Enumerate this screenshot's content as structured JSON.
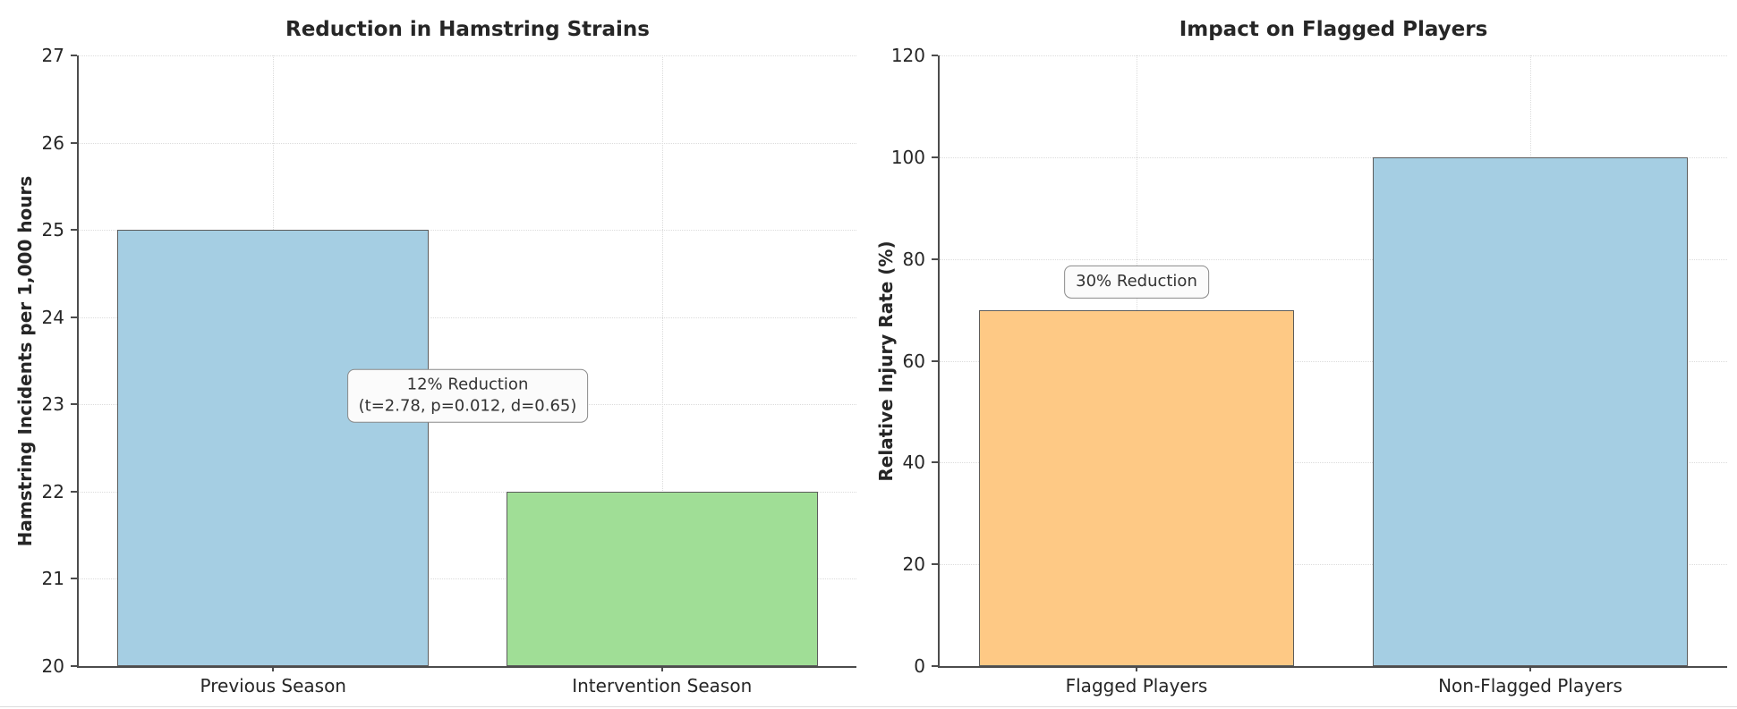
{
  "figure": {
    "background": "#ffffff",
    "grid_color": "#dcdcdc",
    "spine_color": "#4c4c4c",
    "text_color": "#262626"
  },
  "chart_data": [
    {
      "type": "bar",
      "title": "Reduction in Hamstring Strains",
      "xlabel": "",
      "ylabel": "Hamstring Incidents per 1,000 hours",
      "categories": [
        "Previous Season",
        "Intervention Season"
      ],
      "values": [
        25,
        22
      ],
      "bar_colors": [
        "#a5cee3",
        "#a0de96"
      ],
      "bar_edge_color": "#5c5c5c",
      "ylim": [
        20,
        27
      ],
      "yticks": [
        20,
        21,
        22,
        23,
        24,
        25,
        26,
        27
      ],
      "grid": "dotted horizontal and vertical gridlines, no top/right spines",
      "legend": "none",
      "annotation": {
        "lines": [
          "12% Reduction",
          "(t=2.78, p=0.012, d=0.65)"
        ],
        "x_frac": 0.5,
        "y_value": 23.1
      }
    },
    {
      "type": "bar",
      "title": "Impact on Flagged Players",
      "xlabel": "",
      "ylabel": "Relative Injury Rate (%)",
      "categories": [
        "Flagged Players",
        "Non-Flagged Players"
      ],
      "values": [
        70,
        100
      ],
      "bar_colors": [
        "#fec985",
        "#a5cee3"
      ],
      "bar_edge_color": "#5c5c5c",
      "ylim": [
        0,
        120
      ],
      "yticks": [
        0,
        20,
        40,
        60,
        80,
        100,
        120
      ],
      "grid": "dotted horizontal and vertical gridlines, no top/right spines",
      "legend": "none",
      "annotation": {
        "lines": [
          "30% Reduction"
        ],
        "x_frac": 0.25,
        "y_value": 75.5
      }
    }
  ]
}
